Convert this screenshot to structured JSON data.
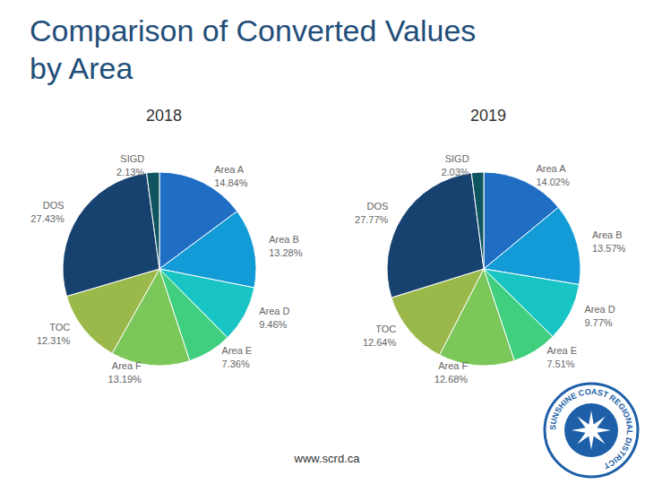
{
  "title": "Comparison of Converted Values\nby Area",
  "footer": "www.scrd.ca",
  "logo_text": "SUNSHINE COAST REGIONAL DISTRICT",
  "chart_data": [
    {
      "type": "pie",
      "title": "2018",
      "categories": [
        "Area A",
        "Area B",
        "Area D",
        "Area E",
        "Area F",
        "TOC",
        "DOS",
        "SIGD"
      ],
      "values": [
        14.84,
        13.28,
        9.46,
        7.36,
        13.19,
        12.31,
        27.43,
        2.13
      ],
      "value_labels": [
        "14.84%",
        "13.28%",
        "9.46%",
        "7.36%",
        "13.19%",
        "12.31%",
        "27.43%",
        "2.13%"
      ],
      "colors": [
        "#1f6ec4",
        "#129bd6",
        "#19c4c4",
        "#3fcf7f",
        "#7cc75a",
        "#9bb94a",
        "#17426f",
        "#0f5560"
      ],
      "data_labels": true
    },
    {
      "type": "pie",
      "title": "2019",
      "categories": [
        "Area A",
        "Area B",
        "Area D",
        "Area E",
        "Area F",
        "TOC",
        "DOS",
        "SIGD"
      ],
      "values": [
        14.02,
        13.57,
        9.77,
        7.51,
        12.68,
        12.64,
        27.77,
        2.03
      ],
      "value_labels": [
        "14.02%",
        "13.57%",
        "9.77%",
        "7.51%",
        "12.68%",
        "12.64%",
        "27.77%",
        "2.03%"
      ],
      "colors": [
        "#1f6ec4",
        "#129bd6",
        "#19c4c4",
        "#3fcf7f",
        "#7cc75a",
        "#9bb94a",
        "#17426f",
        "#0f5560"
      ],
      "data_labels": true
    }
  ]
}
